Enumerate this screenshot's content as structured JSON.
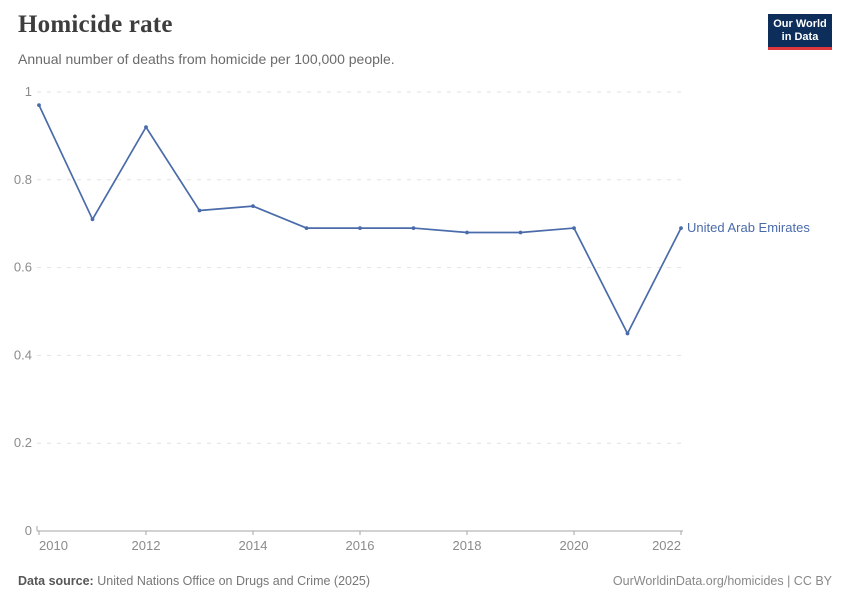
{
  "header": {
    "title": "Homicide rate",
    "subtitle": "Annual number of deaths from homicide per 100,000 people.",
    "logo": {
      "line1": "Our World",
      "line2": "in Data"
    }
  },
  "chart_data": {
    "type": "line",
    "title": "Homicide rate",
    "subtitle": "Annual number of deaths from homicide per 100,000 people.",
    "x": [
      2010,
      2011,
      2012,
      2013,
      2014,
      2015,
      2016,
      2017,
      2018,
      2019,
      2020,
      2021,
      2022
    ],
    "series": [
      {
        "name": "United Arab Emirates",
        "values": [
          0.97,
          0.71,
          0.92,
          0.73,
          0.74,
          0.69,
          0.69,
          0.69,
          0.68,
          0.68,
          0.69,
          0.45,
          0.69
        ],
        "color": "#4a6baa"
      }
    ],
    "xlabel": "",
    "ylabel": "",
    "xlim": [
      2010,
      2022
    ],
    "ylim": [
      0,
      1
    ],
    "xticks": [
      2010,
      2012,
      2014,
      2016,
      2018,
      2020,
      2022
    ],
    "yticks": [
      0,
      0.2,
      0.4,
      0.6,
      0.8,
      1
    ],
    "grid": "horizontal-dashed",
    "legend_position": "end-of-line-label",
    "colors": {
      "line": "#4a6baa",
      "grid": "#e2e2e2",
      "axis": "#a5a5a5",
      "tick_label": "#8b8b8b"
    }
  },
  "footer": {
    "source_label": "Data source:",
    "source_value": "United Nations Office on Drugs and Crime (2025)",
    "attribution": "OurWorldinData.org/homicides | CC BY"
  },
  "brand": {
    "navy": "#0d2e5a",
    "red": "#e0373e"
  }
}
